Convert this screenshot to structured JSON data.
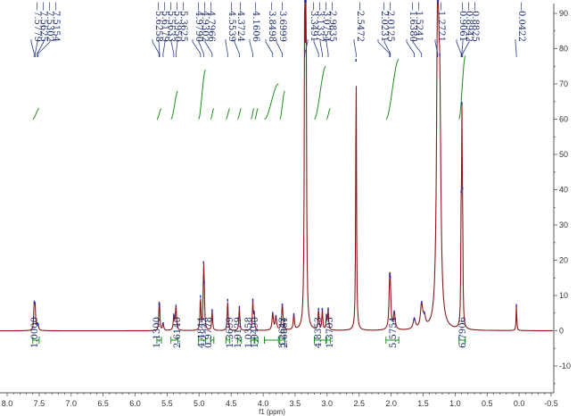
{
  "chart_data": {
    "type": "line",
    "xlabel": "f1 (ppm)",
    "xlim": [
      8.0,
      -0.5
    ],
    "ylim": [
      -17,
      92
    ],
    "x_ticks": [
      "8.0",
      "7.5",
      "7.0",
      "6.5",
      "6.0",
      "5.5",
      "5.0",
      "4.5",
      "4.0",
      "3.5",
      "3.0",
      "2.5",
      "2.0",
      "1.5",
      "1.0",
      "0.5",
      "0.0",
      "-0.5"
    ],
    "y_ticks": [
      "90",
      "80",
      "70",
      "60",
      "50",
      "40",
      "30",
      "20",
      "10",
      "0",
      "-10"
    ],
    "grid": false,
    "peak_labels": [
      "7.5779",
      "7.5625",
      "7.5302",
      "7.5154",
      "5.6258",
      "5.6179",
      "5.5633",
      "5.3950",
      "5.3625",
      "4.9790",
      "4.9302",
      "4.7966",
      "4.5539",
      "4.3724",
      "4.1606",
      "3.8498",
      "3.6999",
      "3.3491",
      "3.1337",
      "3.0754",
      "2.9835",
      "2.5472",
      "2.0231",
      "2.0125",
      "1.6380",
      "1.5241",
      "1.2721",
      "0.9061",
      "0.8942",
      "0.8825",
      "0.0422"
    ],
    "integral_labels": [
      "1.0000",
      "1.1300",
      "2.6140",
      "4.4844",
      "0.9778",
      "1.3699",
      "1.0129",
      "1.0358",
      "1.0490",
      "3.2642",
      "2.6861",
      "4.8353",
      "1.3705",
      "5.5754",
      "6.7906"
    ],
    "series": [
      {
        "color": "#8b1a1a",
        "peaks": [
          {
            "x": 7.578,
            "h": 7.0,
            "w": 0.008
          },
          {
            "x": 7.563,
            "h": 6.5,
            "w": 0.008
          },
          {
            "x": 7.53,
            "h": 1.6,
            "w": 0.008
          },
          {
            "x": 7.515,
            "h": 1.5,
            "w": 0.008
          },
          {
            "x": 5.626,
            "h": 5.6,
            "w": 0.007
          },
          {
            "x": 5.618,
            "h": 5.2,
            "w": 0.007
          },
          {
            "x": 5.563,
            "h": 2.2,
            "w": 0.01
          },
          {
            "x": 5.395,
            "h": 4.2,
            "w": 0.01
          },
          {
            "x": 5.362,
            "h": 7.0,
            "w": 0.01
          },
          {
            "x": 4.979,
            "h": 9.5,
            "w": 0.008
          },
          {
            "x": 4.93,
            "h": 16.5,
            "w": 0.008
          },
          {
            "x": 4.92,
            "h": 7.5,
            "w": 0.008
          },
          {
            "x": 4.797,
            "h": 6.0,
            "w": 0.008
          },
          {
            "x": 4.554,
            "h": 9.0,
            "w": 0.008
          },
          {
            "x": 4.372,
            "h": 7.0,
            "w": 0.008
          },
          {
            "x": 4.161,
            "h": 8.5,
            "w": 0.008
          },
          {
            "x": 4.14,
            "h": 4.5,
            "w": 0.008
          },
          {
            "x": 3.85,
            "h": 5.0,
            "w": 0.012
          },
          {
            "x": 3.8,
            "h": 4.0,
            "w": 0.012
          },
          {
            "x": 3.7,
            "h": 7.5,
            "w": 0.012
          },
          {
            "x": 3.52,
            "h": 4.5,
            "w": 0.01
          },
          {
            "x": 3.349,
            "h": 98.0,
            "w": 0.008
          },
          {
            "x": 3.33,
            "h": 98.0,
            "w": 0.008
          },
          {
            "x": 3.134,
            "h": 6.0,
            "w": 0.008
          },
          {
            "x": 3.075,
            "h": 6.0,
            "w": 0.008
          },
          {
            "x": 3.01,
            "h": 4.0,
            "w": 0.008
          },
          {
            "x": 2.984,
            "h": 6.0,
            "w": 0.008
          },
          {
            "x": 2.547,
            "h": 77.0,
            "w": 0.007
          },
          {
            "x": 2.023,
            "h": 10.5,
            "w": 0.012
          },
          {
            "x": 2.013,
            "h": 9.0,
            "w": 0.012
          },
          {
            "x": 1.95,
            "h": 5.0,
            "w": 0.015
          },
          {
            "x": 1.638,
            "h": 3.0,
            "w": 0.02
          },
          {
            "x": 1.524,
            "h": 7.0,
            "w": 0.02
          },
          {
            "x": 1.48,
            "h": 3.0,
            "w": 0.02
          },
          {
            "x": 1.272,
            "h": 98.0,
            "w": 0.018
          },
          {
            "x": 1.24,
            "h": 55.0,
            "w": 0.02
          },
          {
            "x": 0.906,
            "h": 27.0,
            "w": 0.006
          },
          {
            "x": 0.894,
            "h": 53.0,
            "w": 0.006
          },
          {
            "x": 0.883,
            "h": 26.5,
            "w": 0.006
          },
          {
            "x": 0.042,
            "h": 7.5,
            "w": 0.006
          }
        ]
      }
    ],
    "integral_curves": [
      {
        "from": 7.6,
        "to": 7.5,
        "y0": 60,
        "y1": 63
      },
      {
        "from": 5.66,
        "to": 5.59,
        "y0": 60,
        "y1": 63
      },
      {
        "from": 5.44,
        "to": 5.33,
        "y0": 60,
        "y1": 68
      },
      {
        "from": 5.01,
        "to": 4.9,
        "y0": 60,
        "y1": 74
      },
      {
        "from": 4.82,
        "to": 4.77,
        "y0": 60,
        "y1": 63
      },
      {
        "from": 4.58,
        "to": 4.52,
        "y0": 60,
        "y1": 63
      },
      {
        "from": 4.4,
        "to": 4.34,
        "y0": 60,
        "y1": 63
      },
      {
        "from": 4.19,
        "to": 4.14,
        "y0": 60,
        "y1": 63
      },
      {
        "from": 4.13,
        "to": 4.08,
        "y0": 60,
        "y1": 63
      },
      {
        "from": 3.98,
        "to": 3.76,
        "y0": 60,
        "y1": 70
      },
      {
        "from": 3.74,
        "to": 3.66,
        "y0": 60,
        "y1": 68
      },
      {
        "from": 3.2,
        "to": 3.02,
        "y0": 60,
        "y1": 75
      },
      {
        "from": 3.01,
        "to": 2.95,
        "y0": 60,
        "y1": 63
      },
      {
        "from": 2.08,
        "to": 1.88,
        "y0": 60,
        "y1": 77
      },
      {
        "from": 0.94,
        "to": 0.84,
        "y0": 60,
        "y1": 78
      }
    ]
  }
}
